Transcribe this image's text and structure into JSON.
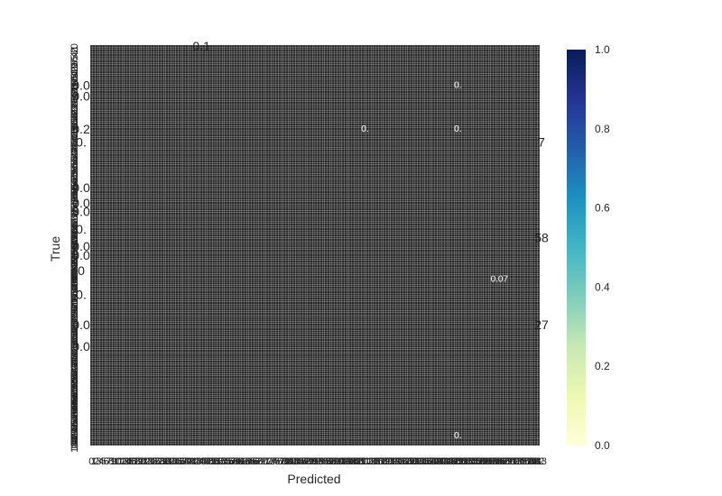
{
  "chart_data": {
    "type": "heatmap",
    "xlabel": "Predicted",
    "ylabel": "True",
    "colorbar": {
      "colormap": "YlGnBu",
      "range": [
        0.0,
        1.0
      ],
      "ticks": [
        "0.0",
        "0.2",
        "0.4",
        "0.6",
        "0.8",
        "1.0"
      ],
      "colors": [
        "#ffffd9",
        "#edf8b1",
        "#c7e9b4",
        "#7fcdbb",
        "#41b6c4",
        "#1d91c0",
        "#225ea8",
        "#253494",
        "#081d58"
      ]
    },
    "cell_fill": "#262626",
    "cell_edge": "#cccccc",
    "x_tick_labels": [
      "0",
      "1",
      "2",
      "3",
      "4",
      "5",
      "6",
      "7",
      "8",
      "9",
      "10",
      "11",
      "12",
      "13",
      "14",
      "15",
      "16",
      "17",
      "18",
      "19",
      "20",
      "21",
      "22",
      "23",
      "24",
      "25",
      "26",
      "27",
      "28",
      "29",
      "30",
      "31",
      "32",
      "33",
      "34",
      "35",
      "36",
      "37",
      "38",
      "39",
      "40",
      "41",
      "42",
      "43",
      "44",
      "45",
      "46",
      "47",
      "48",
      "49",
      "50",
      "51",
      "52",
      "53",
      "54",
      "55",
      "56",
      "57",
      "58",
      "59",
      "60",
      "61",
      "62",
      "63",
      "64",
      "65",
      "66",
      "67",
      "68",
      "69",
      "70",
      "71",
      "72",
      "73",
      "74",
      "75",
      "76",
      "77",
      "78",
      "79",
      "80",
      "81",
      "82",
      "83",
      "84",
      "85",
      "86",
      "87",
      "88",
      "89",
      "90",
      "91",
      "92",
      "93",
      "94",
      "95",
      "96",
      "97",
      "98",
      "99",
      "100",
      "101",
      "102",
      "103",
      "104",
      "105",
      "106",
      "107",
      "108",
      "109",
      "110",
      "111",
      "112",
      "113",
      "114",
      "115",
      "116",
      "117",
      "118",
      "119",
      "120",
      "121",
      "122",
      "123",
      "124",
      "125",
      "126",
      "127",
      "128",
      "129",
      "130",
      "131",
      "132",
      "133",
      "134",
      "135",
      "136",
      "137",
      "138",
      "139",
      "140",
      "141",
      "142",
      "143",
      "144",
      "145",
      "146",
      "147",
      "148",
      "149",
      "150",
      "151",
      "152",
      "153",
      "154",
      "155",
      "156",
      "157",
      "158",
      "159",
      "160",
      "161",
      "162",
      "163",
      "164",
      "165",
      "166",
      "167",
      "168",
      "169",
      "170",
      "171",
      "172",
      "173",
      "174",
      "175",
      "176",
      "177",
      "178",
      "179",
      "180",
      "181",
      "182",
      "183"
    ],
    "y_tick_labels": [
      "0",
      "1",
      "2",
      "3",
      "4",
      "5",
      "6",
      "7",
      "8",
      "9",
      "10",
      "11",
      "12",
      "13",
      "14",
      "15",
      "16",
      "17",
      "18",
      "19",
      "20",
      "21",
      "22",
      "23",
      "24",
      "25",
      "26",
      "27",
      "28",
      "29",
      "30",
      "31",
      "32",
      "33",
      "34",
      "35",
      "36",
      "37",
      "38",
      "39",
      "40",
      "41",
      "42",
      "43",
      "44",
      "45",
      "46",
      "47",
      "48",
      "49",
      "50",
      "51",
      "52",
      "53",
      "54",
      "55",
      "56",
      "57",
      "58",
      "59",
      "60",
      "61",
      "62",
      "63",
      "64",
      "65",
      "66",
      "67",
      "68",
      "69",
      "70",
      "71",
      "72",
      "73",
      "74",
      "75",
      "76",
      "77",
      "78",
      "79",
      "80",
      "81",
      "82",
      "83",
      "84",
      "85",
      "86",
      "87",
      "88",
      "89",
      "90",
      "91",
      "92",
      "93",
      "94",
      "95",
      "96",
      "97",
      "98",
      "99",
      "100",
      "101",
      "102",
      "103",
      "104",
      "105",
      "106",
      "107",
      "108",
      "109",
      "110",
      "111",
      "112",
      "113",
      "114",
      "115",
      "116",
      "117",
      "118",
      "119",
      "120",
      "121",
      "122",
      "123",
      "124",
      "125",
      "126",
      "127",
      "128",
      "129",
      "130",
      "131",
      "132",
      "133",
      "134",
      "135",
      "136",
      "137",
      "138",
      "139",
      "140",
      "141",
      "142",
      "143",
      "144",
      "145",
      "146",
      "147",
      "148",
      "149",
      "150",
      "151",
      "152",
      "153",
      "154",
      "155",
      "156",
      "157",
      "158",
      "159",
      "160",
      "161",
      "162",
      "163",
      "164",
      "165",
      "166",
      "167",
      "168",
      "169",
      "170",
      "171",
      "172",
      "173",
      "174",
      "175",
      "176",
      "177",
      "178",
      "179",
      "180",
      "181",
      "182",
      "183"
    ],
    "annotations": [
      {
        "text": "0.1",
        "row": 0,
        "col": 45
      },
      {
        "text": "0.0",
        "row": 18,
        "col": 0
      },
      {
        "text": "0.0",
        "row": 23,
        "col": 0
      },
      {
        "text": "0.2",
        "row": 38,
        "col": 0
      },
      {
        "text": "0.",
        "row": 44,
        "col": 0
      },
      {
        "text": "7",
        "row": 44,
        "col": 183
      },
      {
        "text": "0.0",
        "row": 65,
        "col": 0
      },
      {
        "text": "0.0",
        "row": 72,
        "col": 0
      },
      {
        "text": "0.0",
        "row": 76,
        "col": 0
      },
      {
        "text": "0.",
        "row": 84,
        "col": 0
      },
      {
        "text": "0.0",
        "row": 92,
        "col": 0
      },
      {
        "text": "0.0",
        "row": 96,
        "col": 0
      },
      {
        "text": "58",
        "row": 88,
        "col": 183
      },
      {
        "text": "0",
        "row": 103,
        "col": 0
      },
      {
        "text": "0.",
        "row": 114,
        "col": 0
      },
      {
        "text": "0.0",
        "row": 128,
        "col": 0
      },
      {
        "text": "0.0",
        "row": 138,
        "col": 0
      },
      {
        "text": "27",
        "row": 128,
        "col": 183
      }
    ],
    "cell_annotations": [
      {
        "text": "0.",
        "row": 38,
        "col": 112
      },
      {
        "text": "0.",
        "row": 38,
        "col": 150
      },
      {
        "text": "0.",
        "row": 18,
        "col": 150
      },
      {
        "text": "0.07",
        "row": 107,
        "col": 167
      },
      {
        "text": "0.",
        "row": 179,
        "col": 150
      }
    ]
  }
}
